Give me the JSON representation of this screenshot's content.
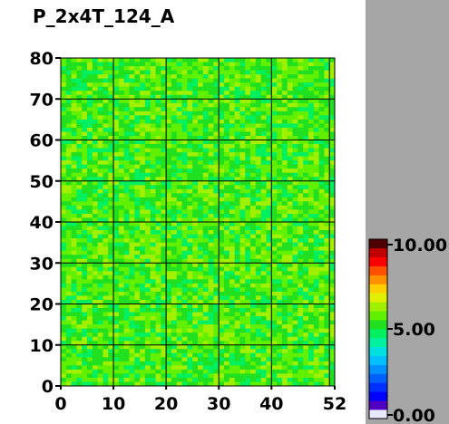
{
  "chart_data": {
    "type": "heatmap",
    "title": "P_2x4T_124_A",
    "x_ticks": [
      0,
      10,
      20,
      30,
      40,
      52
    ],
    "y_ticks": [
      0,
      10,
      20,
      30,
      40,
      50,
      60,
      70,
      80
    ],
    "x_range": [
      0,
      52
    ],
    "y_range": [
      0,
      80
    ],
    "grid": true,
    "grid_x": [
      10,
      20,
      30,
      40,
      51
    ],
    "grid_y": [
      10,
      20,
      30,
      40,
      50,
      60,
      70
    ],
    "cell_cols": 52,
    "cell_rows": 80,
    "dominant_value": 5.5,
    "value_spread": 0.8,
    "colorbar": {
      "min": 0.0,
      "max": 10.0,
      "labels": [
        "10.00",
        "5.00",
        "0.00"
      ],
      "label_values": [
        10.0,
        5.0,
        0.0
      ],
      "colors": [
        "#e8e8ff",
        "#5000c0",
        "#0000ff",
        "#0030ff",
        "#0060ff",
        "#0090ff",
        "#00c0ff",
        "#00e0e0",
        "#00f0a0",
        "#00f060",
        "#20e020",
        "#60f000",
        "#a0f000",
        "#e0f000",
        "#ffd000",
        "#ff9000",
        "#ff5000",
        "#ff0000",
        "#c00000",
        "#500000"
      ]
    }
  }
}
